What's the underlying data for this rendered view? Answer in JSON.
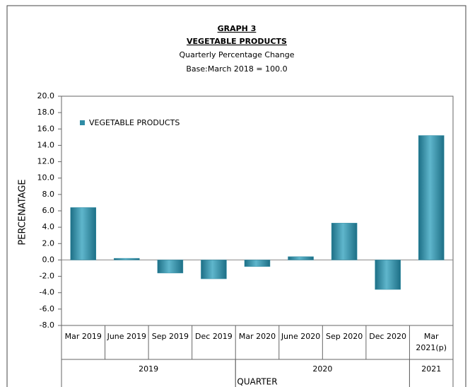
{
  "chart_data": {
    "type": "bar",
    "title": "GRAPH 3",
    "subtitle": "VEGETABLE PRODUCTS",
    "subtitle_lines": [
      "Quarterly Percentage Change",
      "Base:March 2018 = 100.0"
    ],
    "y_label": "PERCENATAGE",
    "x_label": "QUARTER",
    "categories": [
      "Mar 2019",
      "June 2019",
      "Sep 2019",
      "Dec 2019",
      "Mar 2020",
      "June 2020",
      "Sep 2020",
      "Dec 2020",
      "Mar 2021(p)"
    ],
    "groups": [
      {
        "label": "2019",
        "categories": [
          0,
          3
        ]
      },
      {
        "label": "2020",
        "categories": [
          4,
          7
        ]
      },
      {
        "label": "2021",
        "categories": [
          8,
          8
        ]
      }
    ],
    "series": [
      {
        "name": "VEGETABLE PRODUCTS",
        "color": "#2f8ca5",
        "values": [
          6.4,
          0.2,
          -1.6,
          -2.3,
          -0.8,
          0.4,
          4.5,
          -3.6,
          15.2
        ]
      }
    ],
    "legend": "upper left",
    "ylim": [
      -8,
      20
    ],
    "yticks": [
      {
        "value": -8,
        "label": "-8.0"
      },
      {
        "value": -6,
        "label": "-6.0"
      },
      {
        "value": -4,
        "label": "-4.0"
      },
      {
        "value": -2,
        "label": "-2.0"
      },
      {
        "value": 0,
        "label": "0.0"
      },
      {
        "value": 2,
        "label": "2.0"
      },
      {
        "value": 4,
        "label": "4.0"
      },
      {
        "value": 6,
        "label": "6.0"
      },
      {
        "value": 8,
        "label": "8.0"
      },
      {
        "value": 10,
        "label": "10.0"
      },
      {
        "value": 12,
        "label": "12.0"
      },
      {
        "value": 14,
        "label": "14.0"
      },
      {
        "value": 16,
        "label": "16.0"
      },
      {
        "value": 18,
        "label": "18.0"
      },
      {
        "value": 20,
        "label": "20.0"
      }
    ],
    "grid": false
  }
}
